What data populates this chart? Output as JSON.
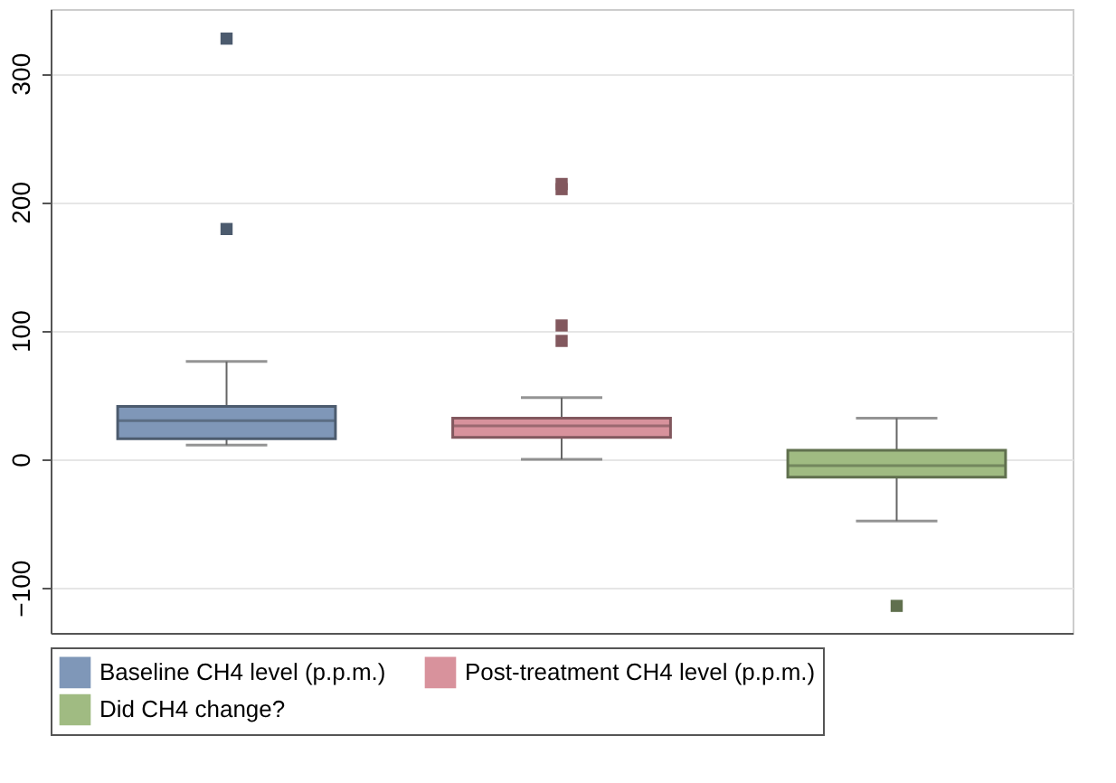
{
  "chart_data": {
    "type": "box",
    "categories": [
      null
    ],
    "series": [
      {
        "name": "Baseline CH4 level (p.p.m.)",
        "color": "#7f97b8",
        "boxes": [
          {
            "low": 11,
            "q1": 16,
            "median": 30,
            "q3": 41,
            "high": 76,
            "outliers": [
              179,
              327
            ]
          }
        ]
      },
      {
        "name": "Post-treatment CH4 level (p.p.m.)",
        "color": "#d8929c",
        "boxes": [
          {
            "low": 0,
            "q1": 17,
            "median": 26,
            "q3": 32,
            "high": 48,
            "outliers": [
              92,
              104,
              210,
              214
            ]
          }
        ]
      },
      {
        "name": "Did CH4 change?",
        "color": "#a0bb82",
        "boxes": [
          {
            "low": -48,
            "q1": -14,
            "median": -5,
            "q3": 7,
            "high": 32,
            "outliers": [
              -114
            ]
          }
        ]
      }
    ],
    "ylim": [
      -135,
      350
    ],
    "yticks": [
      -100,
      0,
      100,
      200,
      300
    ],
    "grid": "y",
    "legend": "bottom",
    "marker": "square",
    "tick_labels": "y"
  }
}
